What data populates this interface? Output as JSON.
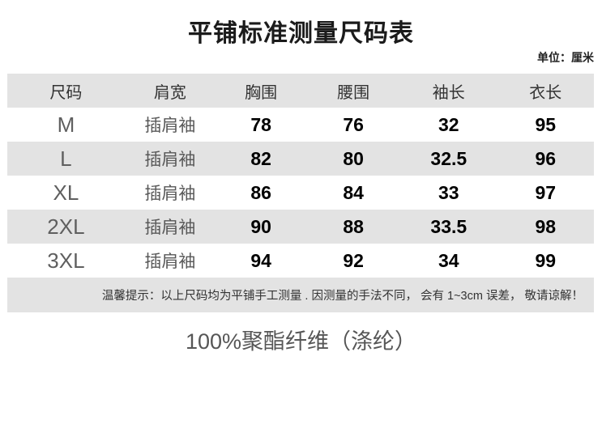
{
  "title": "平铺标准测量尺码表",
  "unit_note": "单位：厘米",
  "table": {
    "headers": [
      "尺码",
      "肩宽",
      "胸围",
      "腰围",
      "袖长",
      "衣长"
    ],
    "rows": [
      {
        "size": "M",
        "shoulder": "插肩袖",
        "bust": "78",
        "waist": "76",
        "sleeve": "32",
        "length": "95"
      },
      {
        "size": "L",
        "shoulder": "插肩袖",
        "bust": "82",
        "waist": "80",
        "sleeve": "32.5",
        "length": "96"
      },
      {
        "size": "XL",
        "shoulder": "插肩袖",
        "bust": "86",
        "waist": "84",
        "sleeve": "33",
        "length": "97"
      },
      {
        "size": "2XL",
        "shoulder": "插肩袖",
        "bust": "90",
        "waist": "88",
        "sleeve": "33.5",
        "length": "98"
      },
      {
        "size": "3XL",
        "shoulder": "插肩袖",
        "bust": "94",
        "waist": "92",
        "sleeve": "34",
        "length": "99"
      }
    ],
    "notice": "温馨提示：以上尺码均为平铺手工测量 . 因测量的手法不同， 会有 1~3cm 误差， 敬请谅解！"
  },
  "footer": {
    "material": "100%聚酯纤维（涤纶）"
  },
  "colors": {
    "row_band": "#e3e3e3",
    "background": "#ffffff",
    "number_text": "#000000",
    "label_text": "#5f5f5f"
  }
}
